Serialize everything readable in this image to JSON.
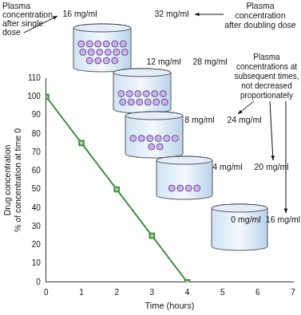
{
  "chart_data": {
    "type": "line",
    "x": [
      0,
      1,
      2,
      3,
      4
    ],
    "values": [
      100,
      75,
      50,
      25,
      0
    ],
    "color": "#3f8f3f",
    "marker": "square",
    "xlim": [
      0,
      7
    ],
    "xticks": [
      0,
      1,
      2,
      3,
      4,
      5,
      6,
      7
    ],
    "ylim": [
      0,
      110
    ],
    "yticks": [
      0,
      10,
      20,
      30,
      40,
      50,
      60,
      70,
      80,
      90,
      100,
      110
    ],
    "x_label": "Time (hours)",
    "y_label": [
      "Drug concentration",
      "% of concentration at time 0"
    ],
    "grid": false,
    "single_dose": {
      "label": [
        "Plasma",
        "concentration",
        "after single",
        "dose"
      ],
      "values": [
        16,
        12,
        8,
        4,
        0
      ],
      "value_labels": [
        "16 mg/ml",
        "12 mg/ml",
        "8 mg/ml",
        "4 mg/ml",
        "0 mg/ml"
      ]
    },
    "doubled_dose": {
      "label": [
        "Plasma",
        "concentration",
        "after doubling dose"
      ],
      "values": [
        32,
        28,
        24,
        20,
        16
      ],
      "value_labels": [
        "32 mg/ml",
        "28 mg/ml",
        "24 mg/ml",
        "20 mg/ml",
        "16 mg/ml"
      ]
    },
    "note": [
      "Plasma",
      "concentrations at",
      "subsequent times,",
      "not decreased",
      "proportionately"
    ]
  }
}
